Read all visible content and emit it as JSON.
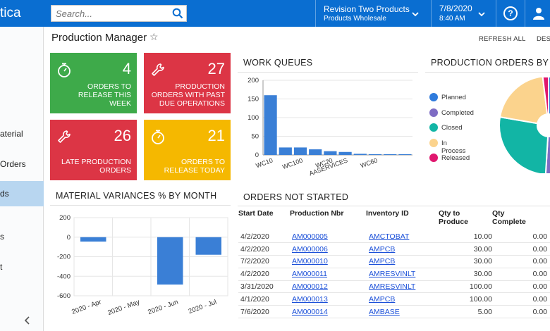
{
  "topbar": {
    "logo_text": "tica",
    "search_placeholder": "Search...",
    "tenant_name": "Revision Two Products",
    "tenant_branch": "Products Wholesale",
    "date": "7/8/2020",
    "time": "8:40 AM",
    "help_glyph": "?",
    "icons": [
      "search-icon",
      "chevron-down-icon",
      "help-icon",
      "user-icon"
    ]
  },
  "sidebar": {
    "items": [
      {
        "label": "aterial",
        "active": false
      },
      {
        "label": " Orders",
        "active": false
      },
      {
        "label": "ds",
        "active": true
      },
      {
        "label": "s",
        "active": false
      },
      {
        "label": "t",
        "active": false
      }
    ],
    "collapse_glyph": "‹"
  },
  "page": {
    "title": "Production Manager",
    "star_glyph": "☆",
    "refresh_all": "REFRESH ALL",
    "design": "DES"
  },
  "tiles": [
    {
      "value": "4",
      "label_lines": [
        "ORDERS TO",
        "RELEASE THIS",
        "WEEK"
      ],
      "color": "#3eaa4a",
      "icon": "stopwatch-icon"
    },
    {
      "value": "27",
      "label_lines": [
        "PRODUCTION",
        "ORDERS WITH PAST",
        "DUE OPERATIONS"
      ],
      "color": "#dc3545",
      "icon": "wrench-icon"
    },
    {
      "value": "26",
      "label_lines": [
        "LATE PRODUCTION",
        "ORDERS"
      ],
      "color": "#dc3545",
      "icon": "wrench-icon"
    },
    {
      "value": "21",
      "label_lines": [
        "ORDERS TO",
        "RELEASE TODAY"
      ],
      "color": "#f5b800",
      "icon": "stopwatch-icon"
    }
  ],
  "work_queues": {
    "title": "WORK QUEUES",
    "chart_data": {
      "type": "bar",
      "categories": [
        "WC10",
        "",
        "WC100",
        "",
        "WC20",
        "AASERVICES",
        "",
        "WC60",
        "",
        ""
      ],
      "values": [
        160,
        20,
        20,
        15,
        10,
        8,
        3,
        2,
        2,
        2
      ],
      "ylim": [
        0,
        200
      ],
      "yticks": [
        0,
        50,
        100,
        150,
        200
      ],
      "color": "#3a7fd6"
    }
  },
  "production_status": {
    "title": "PRODUCTION ORDERS BY S",
    "chart_data": {
      "type": "pie",
      "labels": [
        "Planned",
        "Completed",
        "Closed",
        "In Process",
        "Released"
      ],
      "colors": [
        "#2f7bdc",
        "#7e6cc4",
        "#12b5a5",
        "#fbd38d",
        "#e0176e"
      ],
      "values": [
        7,
        33,
        21,
        16,
        1.5
      ]
    }
  },
  "material_variances": {
    "title": "MATERIAL VARIANCES % BY MONTH",
    "chart_data": {
      "type": "bar",
      "categories": [
        "2020 - Apr",
        "2020 - May",
        "2020 - Jun",
        "2020 - Jul"
      ],
      "values": [
        -45,
        0,
        -485,
        -180
      ],
      "ylim": [
        -600,
        200
      ],
      "yticks": [
        200,
        0,
        -200,
        -400,
        -600
      ],
      "color": "#3a7fd6"
    }
  },
  "orders_not_started": {
    "title": "ORDERS NOT STARTED",
    "headers": {
      "start_date": "Start Date",
      "production_nbr": "Production Nbr",
      "inventory_id": "Inventory ID",
      "qty_to_produce_1": "Qty to",
      "qty_to_produce_2": "Produce",
      "qty_complete_1": "Qty",
      "qty_complete_2": "Complete"
    },
    "rows": [
      {
        "start_date": "4/2/2020",
        "production_nbr": "AM000005",
        "inventory_id": "AMCTOBAT",
        "qty_to_produce": "10.00",
        "qty_complete": "0.00"
      },
      {
        "start_date": "4/2/2020",
        "production_nbr": "AM000006",
        "inventory_id": "AMPCB",
        "qty_to_produce": "30.00",
        "qty_complete": "0.00"
      },
      {
        "start_date": "7/2/2020",
        "production_nbr": "AM000010",
        "inventory_id": "AMPCB",
        "qty_to_produce": "30.00",
        "qty_complete": "0.00"
      },
      {
        "start_date": "4/2/2020",
        "production_nbr": "AM000011",
        "inventory_id": "AMRESVINLT",
        "qty_to_produce": "30.00",
        "qty_complete": "0.00"
      },
      {
        "start_date": "3/31/2020",
        "production_nbr": "AM000012",
        "inventory_id": "AMRESVINLT",
        "qty_to_produce": "100.00",
        "qty_complete": "0.00"
      },
      {
        "start_date": "4/1/2020",
        "production_nbr": "AM000013",
        "inventory_id": "AMPCB",
        "qty_to_produce": "100.00",
        "qty_complete": "0.00"
      },
      {
        "start_date": "7/6/2020",
        "production_nbr": "AM000014",
        "inventory_id": "AMBASE",
        "qty_to_produce": "5.00",
        "qty_complete": "0.00"
      }
    ]
  }
}
